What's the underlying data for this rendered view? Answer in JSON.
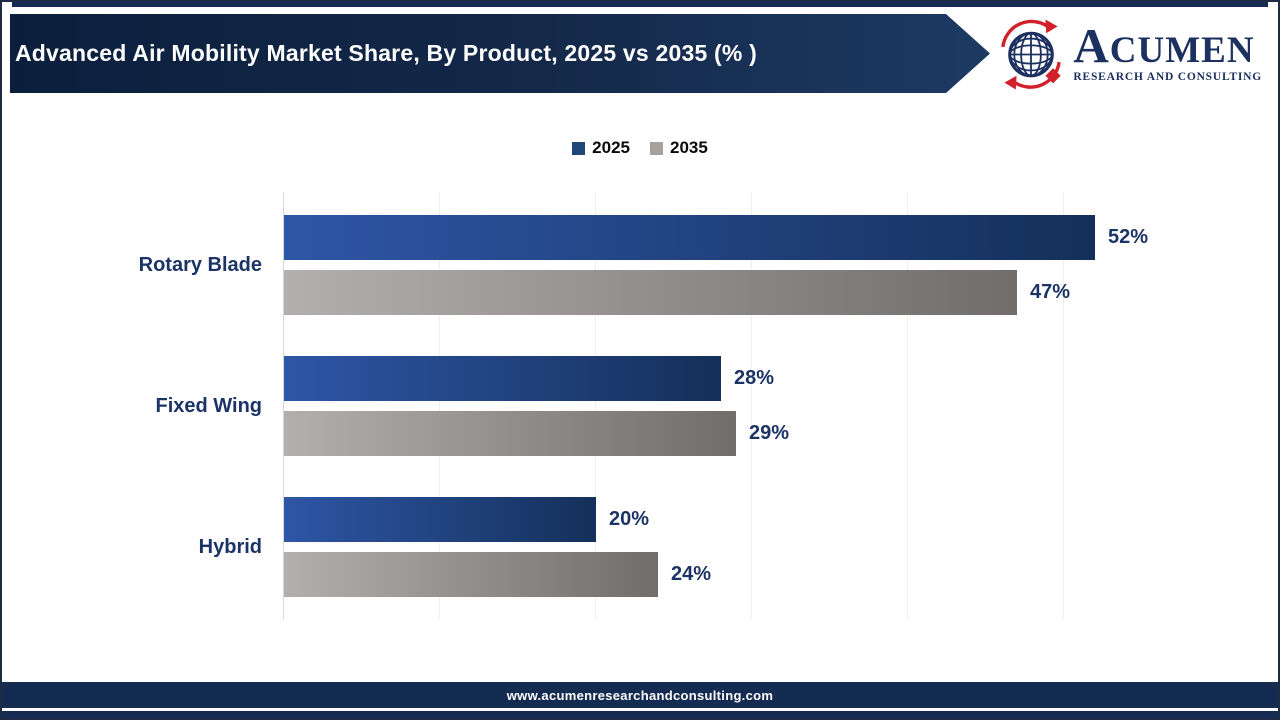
{
  "header": {
    "title": "Advanced Air Mobility Market Share, By Product, 2025 vs 2035 (% )"
  },
  "logo": {
    "brand": "Acumen",
    "subtitle": "RESEARCH AND CONSULTING",
    "navy": "#1d3160",
    "red": "#d1212b"
  },
  "legend": [
    {
      "label": "2025",
      "color": "#1f4879"
    },
    {
      "label": "2035",
      "color": "#a5a19f"
    }
  ],
  "chart_data": {
    "type": "bar",
    "orientation": "horizontal",
    "title": "Advanced Air Mobility Market Share, By Product, 2025 vs 2035 (%)",
    "categories": [
      "Rotary Blade",
      "Fixed Wing",
      "Hybrid"
    ],
    "series": [
      {
        "name": "2025",
        "values": [
          52,
          28,
          20
        ],
        "gradient": [
          "#2e56a6",
          "#14305a"
        ]
      },
      {
        "name": "2035",
        "values": [
          47,
          29,
          24
        ],
        "gradient": [
          "#b3afae",
          "#716d6c"
        ]
      }
    ],
    "value_suffix": "%",
    "xlim": [
      0,
      55
    ],
    "gridlines_every": 10,
    "grid": true,
    "legend_position": "top",
    "data_labels": true
  },
  "footer": {
    "url": "www.acumenresearchandconsulting.com"
  }
}
